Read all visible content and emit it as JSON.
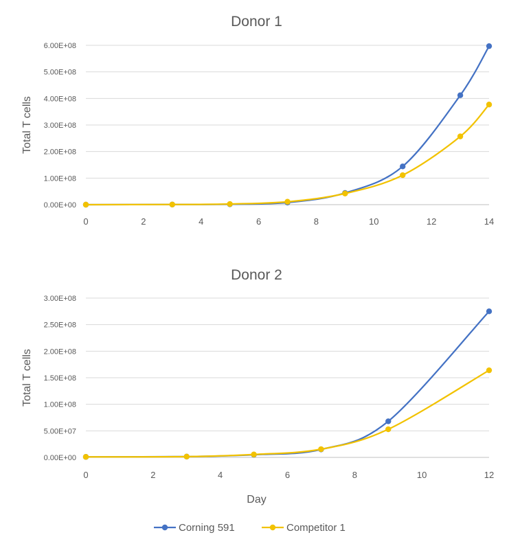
{
  "chart_data": [
    {
      "type": "line",
      "title": "Donor 1",
      "xlabel": "",
      "ylabel": "Total T cells",
      "xlim": [
        0,
        14
      ],
      "ylim": [
        0,
        600000000
      ],
      "x_ticks": [
        "0",
        "2",
        "4",
        "6",
        "8",
        "10",
        "12",
        "14"
      ],
      "y_ticks": [
        "0.00E+00",
        "1.00E+08",
        "2.00E+08",
        "3.00E+08",
        "4.00E+08",
        "5.00E+08",
        "6.00E+08"
      ],
      "grid": true,
      "series": [
        {
          "name": "Corning 591",
          "color": "#4472c4",
          "x": [
            0,
            3,
            5,
            7,
            9,
            11,
            13,
            14
          ],
          "y": [
            0,
            500000,
            1500000,
            8000000,
            44000000,
            144000000,
            412000000,
            597000000
          ]
        },
        {
          "name": "Competitor 1",
          "color": "#f2c200",
          "x": [
            0,
            3,
            5,
            7,
            9,
            11,
            13,
            14
          ],
          "y": [
            0,
            600000,
            2500000,
            11000000,
            42000000,
            111000000,
            257000000,
            377000000
          ]
        }
      ]
    },
    {
      "type": "line",
      "title": "Donor 2",
      "xlabel": "Day",
      "ylabel": "Total T cells",
      "xlim": [
        0,
        12
      ],
      "ylim": [
        0,
        300000000
      ],
      "x_ticks": [
        "0",
        "2",
        "4",
        "6",
        "8",
        "10",
        "12"
      ],
      "y_ticks": [
        "0.00E+00",
        "5.00E+07",
        "1.00E+08",
        "1.50E+08",
        "2.00E+08",
        "2.50E+08",
        "3.00E+08"
      ],
      "grid": true,
      "series": [
        {
          "name": "Corning 591",
          "color": "#4472c4",
          "x": [
            0,
            3,
            5,
            7,
            9,
            12
          ],
          "y": [
            1000000,
            1500000,
            5000000,
            15000000,
            68000000,
            275000000
          ]
        },
        {
          "name": "Competitor 1",
          "color": "#f2c200",
          "x": [
            0,
            3,
            5,
            7,
            9,
            12
          ],
          "y": [
            1000000,
            1500000,
            5500000,
            15500000,
            53000000,
            164000000
          ]
        }
      ]
    }
  ],
  "legend": {
    "placement": "bottom-center",
    "items": [
      {
        "name": "Corning 591",
        "color": "#4472c4"
      },
      {
        "name": "Competitor 1",
        "color": "#f2c200"
      }
    ]
  }
}
